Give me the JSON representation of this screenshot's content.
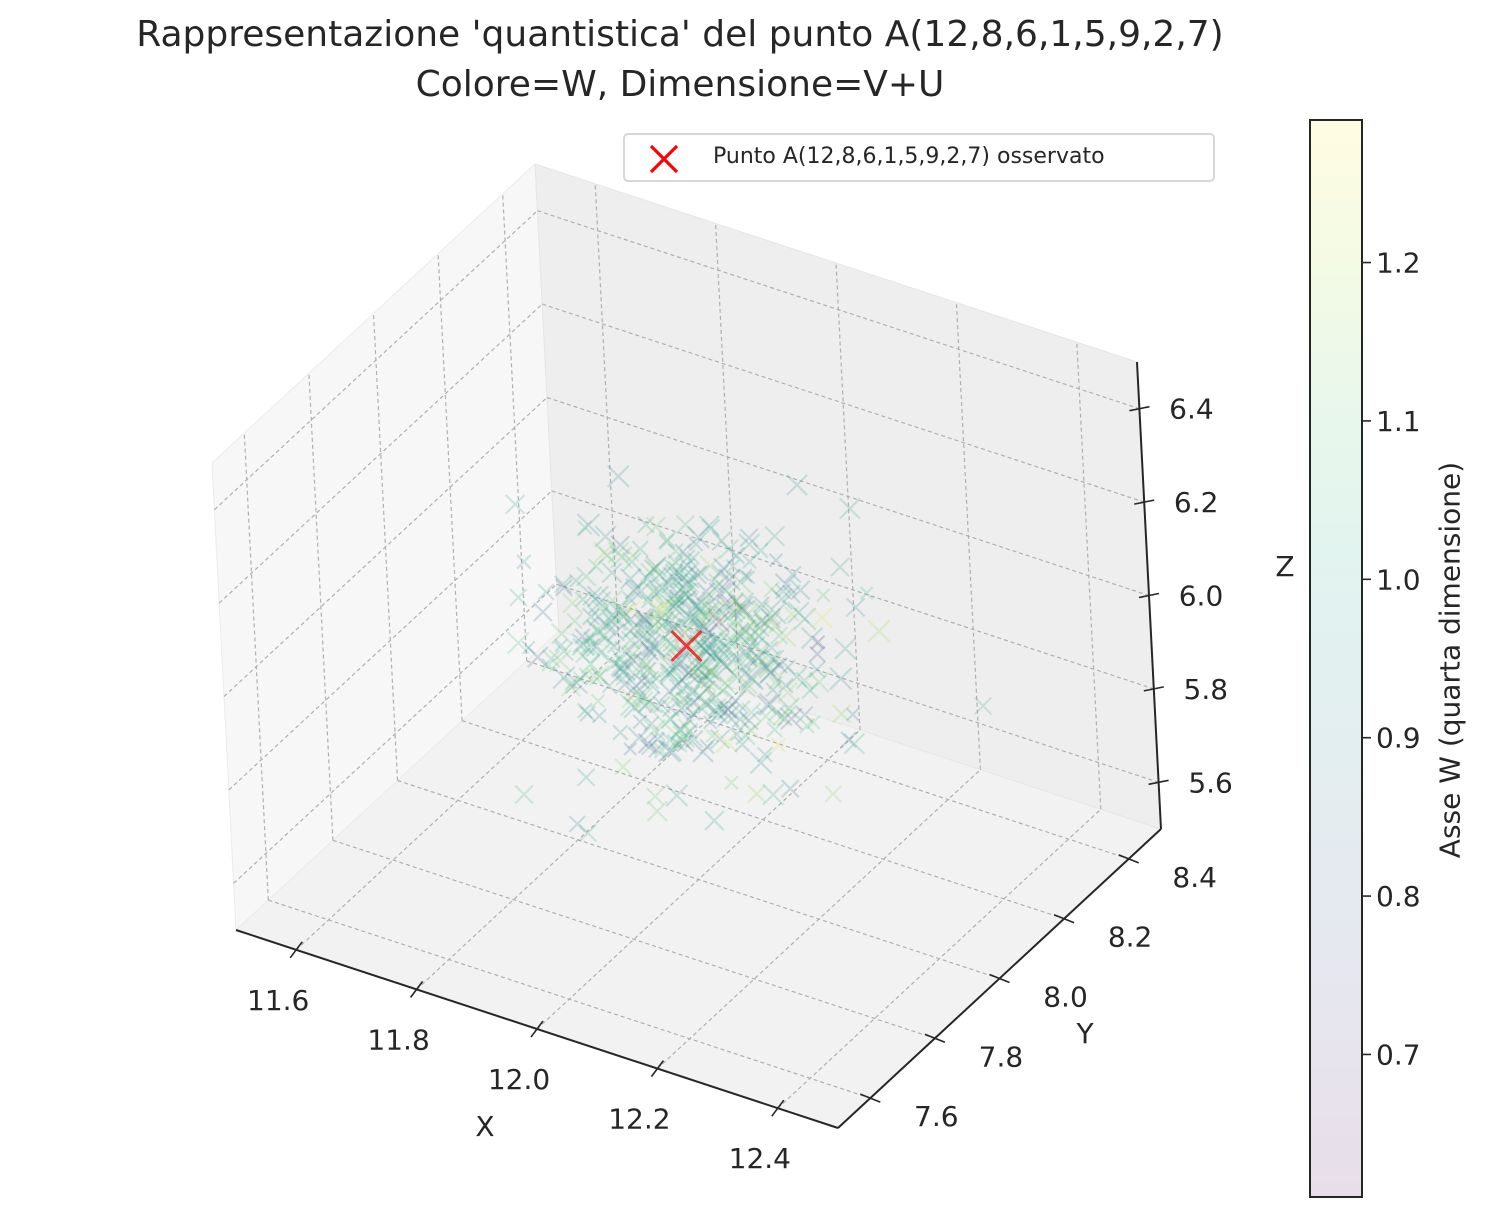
{
  "title": {
    "line1": "Rappresentazione 'quantistica' del punto A(12,8,6,1,5,9,2,7)",
    "line2": "Colore=W, Dimensione=V+U"
  },
  "legend": {
    "entry": "Punto A(12,8,6,1,5,9,2,7) osservato",
    "marker": "x-marker",
    "color": "#ff0000"
  },
  "colors": {
    "observed_point": "#ff0000",
    "colormap": "viridis",
    "pane": "#f2f2f2",
    "grid": "#b0b0b0"
  },
  "chart_data": {
    "type": "scatter",
    "subtype": "3d-scatter",
    "marker": "x",
    "alpha": 0.2,
    "title": "Rappresentazione 'quantistica' del punto A(12,8,6,1,5,9,2,7)\nColore=W, Dimensione=V+U",
    "xlabel": "X",
    "ylabel": "Y",
    "zlabel": "Z",
    "xlim": [
      11.5,
      12.5
    ],
    "ylim": [
      7.5,
      8.5
    ],
    "zlim": [
      5.5,
      6.5
    ],
    "xticks": [
      "11.6",
      "11.8",
      "12.0",
      "12.2",
      "12.4"
    ],
    "yticks": [
      "7.6",
      "7.8",
      "8.0",
      "8.2",
      "8.4"
    ],
    "zticks": [
      "5.6",
      "5.8",
      "6.0",
      "6.2",
      "6.4"
    ],
    "grid": true,
    "legend_position": "top-right",
    "colorbar": {
      "label": "Asse W (quarta dimensione)",
      "range": [
        0.61,
        1.29
      ],
      "ticks": [
        "0.7",
        "0.8",
        "0.9",
        "1.0",
        "1.1",
        "1.2"
      ],
      "colormap": "viridis"
    },
    "observed_point": {
      "x": 12.0,
      "y": 8.0,
      "z": 6.0,
      "label": "Punto A(12,8,6,1,5,9,2,7) osservato",
      "color": "#ff0000"
    },
    "cloud": {
      "n_points": 500,
      "center": {
        "x": 12.0,
        "y": 8.0,
        "z": 6.0,
        "w": 1.0
      },
      "spread_std": 0.1,
      "w_std": 0.1
    }
  }
}
